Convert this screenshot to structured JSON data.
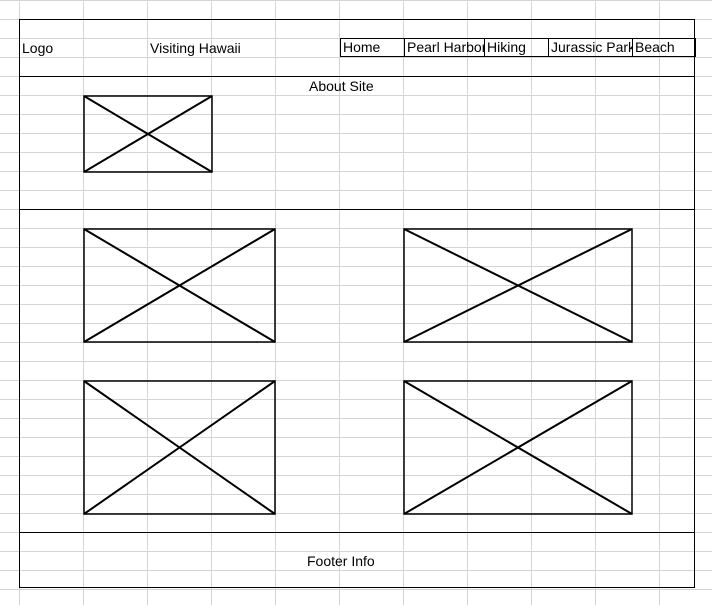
{
  "header": {
    "logo": "Logo",
    "title": "Visiting Hawaii"
  },
  "nav": {
    "items": [
      {
        "label": "Home"
      },
      {
        "label": "Pearl Harbor"
      },
      {
        "label": "Hiking"
      },
      {
        "label": "Jurassic Park"
      },
      {
        "label": "Beach"
      }
    ]
  },
  "about": {
    "title": "About Site"
  },
  "footer": {
    "text": "Footer Info"
  },
  "placeholders": {
    "icon": "image-placeholder-x",
    "count": 5
  }
}
